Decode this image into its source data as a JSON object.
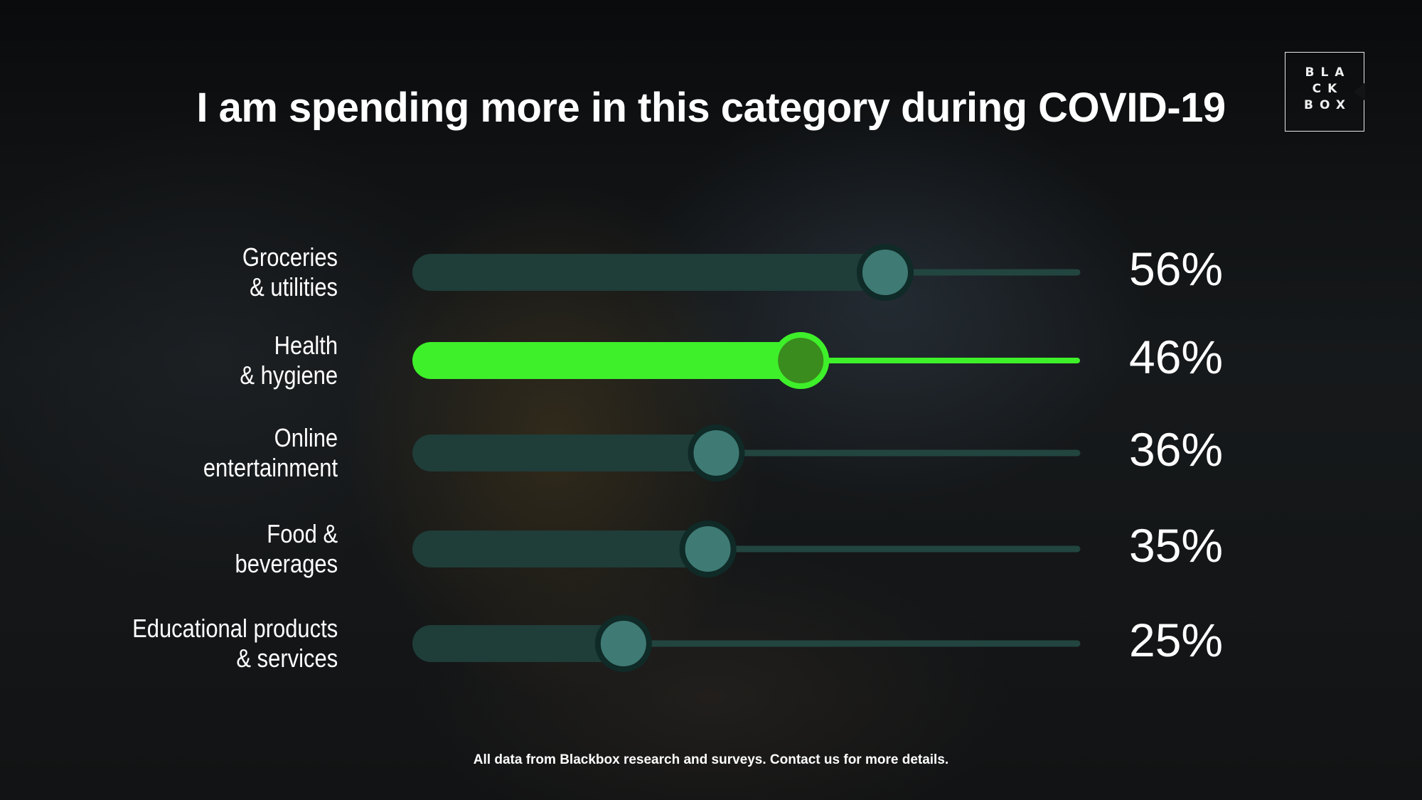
{
  "title": "I am spending more in this category during COVID-19",
  "logo": {
    "lines": [
      "BLA",
      "CK",
      "BOX"
    ]
  },
  "footnote": "All data from Blackbox research and surveys. Contact us for more details.",
  "colors": {
    "track_dark": "#1f3d39",
    "thin_line_dark": "#224540",
    "knob_dark": "#3f7a74",
    "knob_ring_dark": "#0f2a27",
    "highlight": "#3ef02a",
    "knob_highlight": "#3a8c1e"
  },
  "chart_data": {
    "type": "bar",
    "title": "I am spending more in this category during COVID-19",
    "categories": [
      [
        "Groceries",
        "& utilities"
      ],
      [
        "Health",
        "& hygiene"
      ],
      [
        "Online",
        "entertainment"
      ],
      [
        "Food &",
        "beverages"
      ],
      [
        "Educational products",
        "& services"
      ]
    ],
    "values": [
      56,
      46,
      36,
      35,
      25
    ],
    "value_labels": [
      "56%",
      "46%",
      "36%",
      "35%",
      "25%"
    ],
    "highlighted_index": 1,
    "xlim": [
      0,
      100
    ],
    "grid": false,
    "legend": "none"
  }
}
